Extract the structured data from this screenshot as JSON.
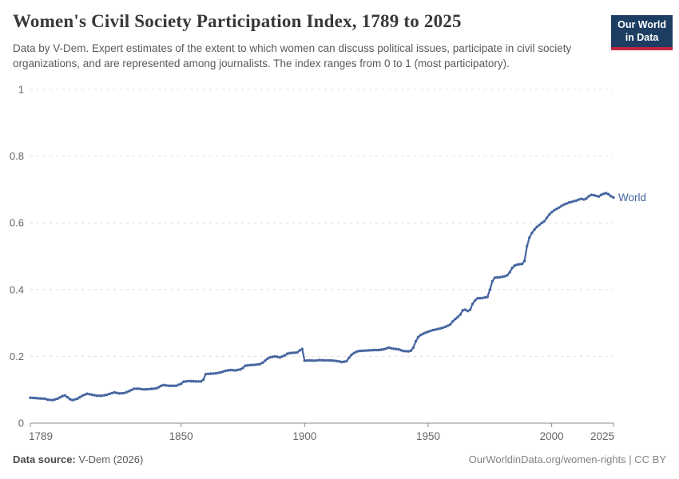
{
  "header": {
    "title": "Women's Civil Society Participation Index, 1789 to 2025",
    "subtitle": "Data by V-Dem. Expert estimates of the extent to which women can discuss political issues, participate in civil society organizations, and are represented among journalists. The index ranges from 0 to 1 (most participatory).",
    "logo": {
      "line1": "Our World",
      "line2": "in Data",
      "bg": "#1d3d63",
      "accent": "#c0273f"
    }
  },
  "chart_data": {
    "type": "line",
    "title": "Women's Civil Society Participation Index, 1789 to 2025",
    "xlabel": "",
    "ylabel": "",
    "xlim": [
      1789,
      2025
    ],
    "ylim": [
      0,
      1
    ],
    "x_ticks": [
      1789,
      1850,
      1900,
      1950,
      2000,
      2025
    ],
    "y_ticks": [
      0,
      0.2,
      0.4,
      0.6,
      0.8,
      1
    ],
    "grid": "horizontal-dashed",
    "legend_position": "line-end",
    "colors": {
      "grid": "#dedede",
      "axis": "#8b8b8b",
      "tick_text": "#666666"
    },
    "series": [
      {
        "name": "World",
        "color": "#4565a0",
        "points": [
          [
            1789,
            0.076
          ],
          [
            1791,
            0.075
          ],
          [
            1793,
            0.074
          ],
          [
            1795,
            0.073
          ],
          [
            1796,
            0.07
          ],
          [
            1798,
            0.069
          ],
          [
            1800,
            0.073
          ],
          [
            1802,
            0.081
          ],
          [
            1803,
            0.083
          ],
          [
            1805,
            0.072
          ],
          [
            1806,
            0.069
          ],
          [
            1808,
            0.073
          ],
          [
            1810,
            0.082
          ],
          [
            1812,
            0.088
          ],
          [
            1814,
            0.085
          ],
          [
            1816,
            0.082
          ],
          [
            1818,
            0.082
          ],
          [
            1820,
            0.085
          ],
          [
            1822,
            0.09
          ],
          [
            1823,
            0.092
          ],
          [
            1825,
            0.089
          ],
          [
            1827,
            0.09
          ],
          [
            1829,
            0.096
          ],
          [
            1831,
            0.103
          ],
          [
            1833,
            0.103
          ],
          [
            1835,
            0.101
          ],
          [
            1837,
            0.102
          ],
          [
            1840,
            0.104
          ],
          [
            1842,
            0.112
          ],
          [
            1843,
            0.114
          ],
          [
            1845,
            0.112
          ],
          [
            1848,
            0.112
          ],
          [
            1850,
            0.118
          ],
          [
            1851,
            0.124
          ],
          [
            1853,
            0.126
          ],
          [
            1856,
            0.125
          ],
          [
            1858,
            0.125
          ],
          [
            1859,
            0.13
          ],
          [
            1860,
            0.147
          ],
          [
            1862,
            0.148
          ],
          [
            1864,
            0.149
          ],
          [
            1866,
            0.152
          ],
          [
            1868,
            0.157
          ],
          [
            1870,
            0.159
          ],
          [
            1872,
            0.158
          ],
          [
            1874,
            0.161
          ],
          [
            1875,
            0.165
          ],
          [
            1876,
            0.172
          ],
          [
            1878,
            0.174
          ],
          [
            1880,
            0.175
          ],
          [
            1882,
            0.177
          ],
          [
            1883,
            0.181
          ],
          [
            1884,
            0.187
          ],
          [
            1885,
            0.193
          ],
          [
            1886,
            0.197
          ],
          [
            1888,
            0.2
          ],
          [
            1890,
            0.197
          ],
          [
            1892,
            0.203
          ],
          [
            1893,
            0.208
          ],
          [
            1894,
            0.21
          ],
          [
            1896,
            0.211
          ],
          [
            1897,
            0.212
          ],
          [
            1898,
            0.218
          ],
          [
            1899,
            0.222
          ],
          [
            1900,
            0.187
          ],
          [
            1902,
            0.188
          ],
          [
            1904,
            0.187
          ],
          [
            1906,
            0.189
          ],
          [
            1908,
            0.188
          ],
          [
            1910,
            0.188
          ],
          [
            1912,
            0.187
          ],
          [
            1914,
            0.185
          ],
          [
            1915,
            0.183
          ],
          [
            1916,
            0.184
          ],
          [
            1917,
            0.186
          ],
          [
            1918,
            0.196
          ],
          [
            1919,
            0.205
          ],
          [
            1920,
            0.21
          ],
          [
            1921,
            0.214
          ],
          [
            1922,
            0.216
          ],
          [
            1924,
            0.217
          ],
          [
            1926,
            0.218
          ],
          [
            1928,
            0.219
          ],
          [
            1930,
            0.219
          ],
          [
            1932,
            0.221
          ],
          [
            1934,
            0.226
          ],
          [
            1936,
            0.223
          ],
          [
            1938,
            0.221
          ],
          [
            1940,
            0.216
          ],
          [
            1942,
            0.215
          ],
          [
            1943,
            0.217
          ],
          [
            1944,
            0.226
          ],
          [
            1945,
            0.245
          ],
          [
            1946,
            0.258
          ],
          [
            1947,
            0.264
          ],
          [
            1948,
            0.268
          ],
          [
            1950,
            0.274
          ],
          [
            1952,
            0.279
          ],
          [
            1954,
            0.282
          ],
          [
            1956,
            0.286
          ],
          [
            1958,
            0.292
          ],
          [
            1959,
            0.296
          ],
          [
            1960,
            0.305
          ],
          [
            1961,
            0.312
          ],
          [
            1962,
            0.318
          ],
          [
            1963,
            0.325
          ],
          [
            1964,
            0.338
          ],
          [
            1965,
            0.34
          ],
          [
            1966,
            0.336
          ],
          [
            1967,
            0.34
          ],
          [
            1968,
            0.358
          ],
          [
            1969,
            0.368
          ],
          [
            1970,
            0.374
          ],
          [
            1972,
            0.375
          ],
          [
            1974,
            0.378
          ],
          [
            1975,
            0.4
          ],
          [
            1976,
            0.425
          ],
          [
            1977,
            0.436
          ],
          [
            1979,
            0.437
          ],
          [
            1981,
            0.44
          ],
          [
            1982,
            0.443
          ],
          [
            1983,
            0.452
          ],
          [
            1984,
            0.465
          ],
          [
            1985,
            0.472
          ],
          [
            1986,
            0.475
          ],
          [
            1988,
            0.477
          ],
          [
            1989,
            0.486
          ],
          [
            1990,
            0.53
          ],
          [
            1991,
            0.556
          ],
          [
            1992,
            0.57
          ],
          [
            1993,
            0.58
          ],
          [
            1994,
            0.588
          ],
          [
            1995,
            0.594
          ],
          [
            1996,
            0.6
          ],
          [
            1997,
            0.605
          ],
          [
            1998,
            0.615
          ],
          [
            1999,
            0.625
          ],
          [
            2000,
            0.632
          ],
          [
            2001,
            0.638
          ],
          [
            2002,
            0.642
          ],
          [
            2003,
            0.646
          ],
          [
            2004,
            0.651
          ],
          [
            2005,
            0.655
          ],
          [
            2006,
            0.658
          ],
          [
            2007,
            0.661
          ],
          [
            2008,
            0.663
          ],
          [
            2009,
            0.665
          ],
          [
            2010,
            0.667
          ],
          [
            2011,
            0.67
          ],
          [
            2012,
            0.672
          ],
          [
            2013,
            0.67
          ],
          [
            2014,
            0.673
          ],
          [
            2015,
            0.68
          ],
          [
            2016,
            0.684
          ],
          [
            2017,
            0.683
          ],
          [
            2018,
            0.681
          ],
          [
            2019,
            0.679
          ],
          [
            2020,
            0.684
          ],
          [
            2021,
            0.687
          ],
          [
            2022,
            0.689
          ],
          [
            2023,
            0.686
          ],
          [
            2024,
            0.68
          ],
          [
            2025,
            0.676
          ]
        ]
      }
    ]
  },
  "footer": {
    "source_label": "Data source:",
    "source_value": " V-Dem (2026)",
    "credit": "OurWorldinData.org/women-rights | CC BY"
  }
}
